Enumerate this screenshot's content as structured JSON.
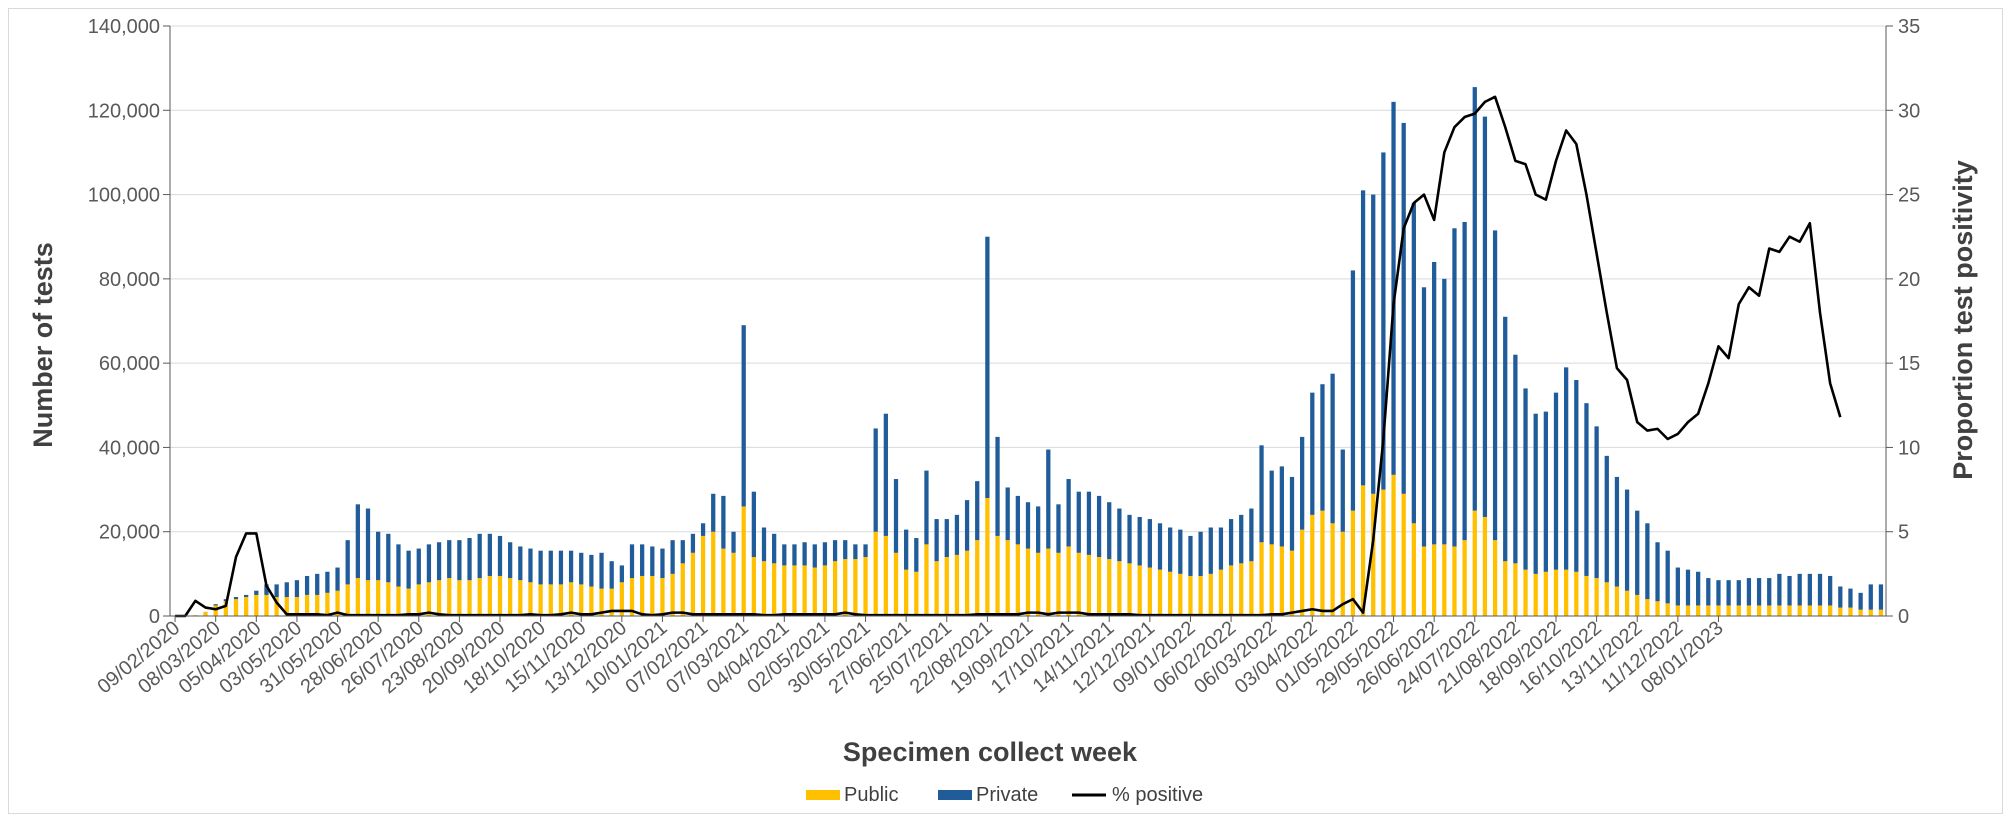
{
  "chart_data": {
    "type": "bar",
    "stacked": true,
    "xlabel": "Specimen collect week",
    "ylabel": "Number of tests",
    "y2label": "Proportion test positivity",
    "ylim": [
      0,
      140000
    ],
    "y2lim": [
      0,
      35
    ],
    "yticks": [
      "0",
      "20,000",
      "40,000",
      "60,000",
      "80,000",
      "100,000",
      "120,000",
      "140,000"
    ],
    "y2ticks": [
      "0",
      "5",
      "10",
      "15",
      "20",
      "25",
      "30",
      "35"
    ],
    "grid": "horizontal",
    "legend_position": "bottom",
    "x_tick_labels": [
      "09/02/2020",
      "08/03/2020",
      "05/04/2020",
      "03/05/2020",
      "31/05/2020",
      "28/06/2020",
      "26/07/2020",
      "23/08/2020",
      "20/09/2020",
      "18/10/2020",
      "15/11/2020",
      "13/12/2020",
      "10/01/2021",
      "07/02/2021",
      "07/03/2021",
      "04/04/2021",
      "02/05/2021",
      "30/05/2021",
      "27/06/2021",
      "25/07/2021",
      "22/08/2021",
      "19/09/2021",
      "17/10/2021",
      "14/11/2021",
      "12/12/2021",
      "09/01/2022",
      "06/02/2022",
      "06/03/2022",
      "03/04/2022",
      "01/05/2022",
      "29/05/2022",
      "26/06/2022",
      "24/07/2022",
      "21/08/2022",
      "18/09/2022",
      "16/10/2022",
      "13/11/2022",
      "11/12/2022",
      "08/01/2023"
    ],
    "weeks_per_tick": 4,
    "series": [
      {
        "name": "Public",
        "type": "bar",
        "color": "#FFC000",
        "values": [
          0,
          0,
          200,
          1000,
          2500,
          3500,
          4000,
          4500,
          5000,
          5000,
          4500,
          4500,
          4500,
          5000,
          5000,
          5500,
          6000,
          7500,
          9000,
          8500,
          8500,
          8000,
          7000,
          6500,
          7500,
          8000,
          8500,
          9000,
          8500,
          8500,
          9000,
          9500,
          9500,
          9000,
          8500,
          8000,
          7500,
          7500,
          7500,
          8000,
          7500,
          7000,
          6500,
          6500,
          8000,
          9000,
          9500,
          9500,
          9000,
          10000,
          12500,
          15000,
          19000,
          20000,
          16000,
          15000,
          26000,
          14000,
          13000,
          12500,
          12000,
          12000,
          12000,
          11500,
          12000,
          13000,
          13500,
          13500,
          14000,
          20000,
          19000,
          15000,
          11000,
          10500,
          17000,
          13000,
          14000,
          14500,
          15500,
          18000,
          28000,
          19000,
          18000,
          17000,
          16000,
          15000,
          16000,
          15000,
          16500,
          15000,
          14500,
          14000,
          13500,
          13000,
          12500,
          12000,
          11500,
          11000,
          10500,
          10000,
          9500,
          9500,
          10000,
          11000,
          12000,
          12500,
          13000,
          17500,
          17000,
          16500,
          15500,
          20500,
          24000,
          25000,
          22000,
          20000,
          25000,
          31000,
          29000,
          30000,
          33500,
          29000,
          22000,
          16500,
          17000,
          17000,
          16500,
          18000,
          25000,
          23500,
          18000,
          13000,
          12500,
          11000,
          10000,
          10500,
          11000,
          11000,
          10500,
          9500,
          9000,
          8000,
          7000,
          6000,
          5000,
          4000,
          3500,
          3000,
          2500,
          2500,
          2500,
          2500,
          2500,
          2500,
          2500,
          2500,
          2500,
          2500,
          2500,
          2500,
          2500,
          2500,
          2500,
          2500,
          2000,
          2000,
          1500,
          1500,
          1500
        ]
      },
      {
        "name": "Private",
        "type": "bar",
        "color": "#1F5C99",
        "values": [
          0,
          0,
          0,
          0,
          300,
          500,
          500,
          500,
          1000,
          2500,
          3000,
          3500,
          4000,
          4500,
          5000,
          5000,
          5500,
          10500,
          17500,
          17000,
          11500,
          11500,
          10000,
          9000,
          8500,
          9000,
          9000,
          9000,
          9500,
          10000,
          10500,
          10000,
          9500,
          8500,
          8000,
          8000,
          8000,
          8000,
          8000,
          7500,
          7500,
          7500,
          8500,
          6500,
          4000,
          8000,
          7500,
          7000,
          7000,
          8000,
          5500,
          4500,
          3000,
          9000,
          12500,
          5000,
          43000,
          15500,
          8000,
          7000,
          5000,
          5000,
          5500,
          5500,
          5500,
          5000,
          4500,
          3500,
          3000,
          24500,
          29000,
          17500,
          9500,
          8000,
          17500,
          10000,
          9000,
          9500,
          12000,
          14000,
          62000,
          23500,
          12500,
          11500,
          11000,
          11000,
          23500,
          11500,
          16000,
          14500,
          15000,
          14500,
          13500,
          12500,
          11500,
          11500,
          11500,
          11000,
          10500,
          10500,
          9500,
          10500,
          11000,
          10000,
          11000,
          11500,
          12500,
          23000,
          17500,
          19000,
          17500,
          22000,
          29000,
          30000,
          35500,
          19500,
          57000,
          70000,
          71000,
          80000,
          88500,
          88000,
          76000,
          61500,
          67000,
          63000,
          75500,
          75500,
          100500,
          95000,
          73500,
          58000,
          49500,
          43000,
          38000,
          38000,
          42000,
          48000,
          45500,
          41000,
          36000,
          30000,
          26000,
          24000,
          20000,
          18000,
          14000,
          12500,
          9000,
          8500,
          8000,
          6500,
          6000,
          6000,
          6000,
          6500,
          6500,
          6500,
          7500,
          7000,
          7500,
          7500,
          7500,
          7000,
          5000,
          4500,
          4000,
          6000,
          6000
        ]
      },
      {
        "name": "% positive",
        "type": "line",
        "color": "#000000",
        "axis": "right",
        "values": [
          0,
          0,
          0.9,
          0.5,
          0.4,
          0.6,
          3.5,
          4.9,
          4.9,
          1.8,
          0.8,
          0.1,
          0.1,
          0.1,
          0.1,
          0.05,
          0.2,
          0.05,
          0.05,
          0.05,
          0.05,
          0.05,
          0.05,
          0.1,
          0.1,
          0.2,
          0.1,
          0.05,
          0.05,
          0.05,
          0.05,
          0.05,
          0.05,
          0.05,
          0.05,
          0.1,
          0.05,
          0.05,
          0.1,
          0.2,
          0.1,
          0.1,
          0.2,
          0.3,
          0.3,
          0.3,
          0.1,
          0.05,
          0.1,
          0.2,
          0.2,
          0.1,
          0.1,
          0.1,
          0.1,
          0.1,
          0.1,
          0.1,
          0.05,
          0.05,
          0.1,
          0.1,
          0.1,
          0.1,
          0.1,
          0.1,
          0.2,
          0.1,
          0.05,
          0.05,
          0.05,
          0.05,
          0.05,
          0.05,
          0.05,
          0.05,
          0.05,
          0.05,
          0.05,
          0.1,
          0.1,
          0.1,
          0.1,
          0.1,
          0.2,
          0.2,
          0.1,
          0.2,
          0.2,
          0.2,
          0.1,
          0.1,
          0.1,
          0.1,
          0.1,
          0.05,
          0.05,
          0.05,
          0.05,
          0.05,
          0.05,
          0.05,
          0.05,
          0.05,
          0.05,
          0.05,
          0.05,
          0.05,
          0.1,
          0.1,
          0.2,
          0.3,
          0.4,
          0.3,
          0.3,
          0.7,
          1.0,
          0.2,
          4.5,
          10.5,
          18.5,
          23,
          24.5,
          25,
          23.5,
          27.5,
          29,
          29.6,
          29.8,
          30.5,
          30.8,
          29,
          27,
          26.8,
          25,
          24.7,
          27,
          28.8,
          28,
          25,
          21.5,
          18,
          14.7,
          14,
          11.5,
          11,
          11.1,
          10.5,
          10.8,
          11.5,
          12,
          13.8,
          16,
          15.3,
          18.5,
          19.5,
          19,
          21.8,
          21.6,
          22.5,
          22.2,
          23.3,
          18,
          13.8,
          11.8
        ]
      }
    ],
    "legend": [
      "Public",
      "Private",
      "% positive"
    ]
  }
}
